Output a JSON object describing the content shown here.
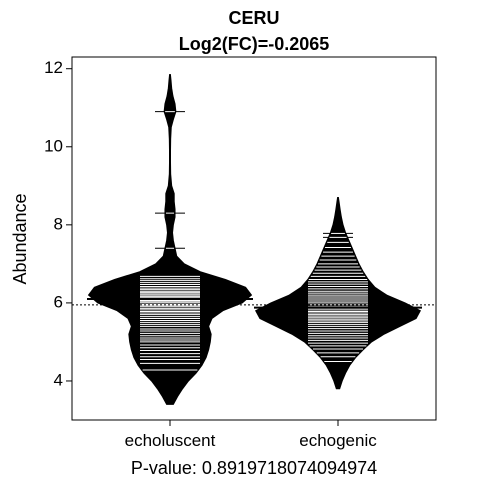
{
  "chart_data": {
    "type": "beanplot",
    "title": "CERU",
    "subtitle": "Log2(FC)=-0.2065",
    "xlabel": "P-value: 0.8919718074094974",
    "ylabel": "Abundance",
    "categories": [
      "echoluscent",
      "echogenic"
    ],
    "ylim": [
      3.0,
      12.3
    ],
    "yticks": [
      4,
      6,
      8,
      10,
      12
    ],
    "overall_mean": 5.95,
    "group_means": [
      6.1,
      5.88
    ],
    "grid": false,
    "beans": [
      {
        "name": "echoluscent",
        "min": 3.4,
        "max": 11.85,
        "density": [
          [
            3.4,
            0.04
          ],
          [
            3.6,
            0.09
          ],
          [
            3.8,
            0.15
          ],
          [
            4.0,
            0.22
          ],
          [
            4.2,
            0.31
          ],
          [
            4.4,
            0.38
          ],
          [
            4.6,
            0.43
          ],
          [
            4.8,
            0.46
          ],
          [
            5.0,
            0.48
          ],
          [
            5.2,
            0.49
          ],
          [
            5.4,
            0.46
          ],
          [
            5.6,
            0.5
          ],
          [
            5.8,
            0.63
          ],
          [
            6.0,
            0.86
          ],
          [
            6.2,
            0.97
          ],
          [
            6.4,
            0.9
          ],
          [
            6.6,
            0.66
          ],
          [
            6.8,
            0.36
          ],
          [
            7.0,
            0.17
          ],
          [
            7.2,
            0.08
          ],
          [
            7.4,
            0.06
          ],
          [
            7.6,
            0.04
          ],
          [
            7.8,
            0.03
          ],
          [
            8.0,
            0.04
          ],
          [
            8.2,
            0.06
          ],
          [
            8.4,
            0.06
          ],
          [
            8.6,
            0.05
          ],
          [
            8.8,
            0.05
          ],
          [
            9.0,
            0.02
          ],
          [
            9.3,
            0.008
          ],
          [
            9.6,
            0.006
          ],
          [
            9.9,
            0.006
          ],
          [
            10.2,
            0.008
          ],
          [
            10.5,
            0.015
          ],
          [
            10.7,
            0.04
          ],
          [
            10.9,
            0.07
          ],
          [
            11.1,
            0.06
          ],
          [
            11.3,
            0.035
          ],
          [
            11.5,
            0.02
          ],
          [
            11.7,
            0.012
          ],
          [
            11.85,
            0.005
          ]
        ],
        "points": [
          4.28,
          4.45,
          4.55,
          4.62,
          4.7,
          4.78,
          4.85,
          4.92,
          5.0,
          5.05,
          5.1,
          5.16,
          5.22,
          5.28,
          5.33,
          5.4,
          5.45,
          5.5,
          5.55,
          5.6,
          5.65,
          5.7,
          5.74,
          5.78,
          5.82,
          5.86,
          5.9,
          5.93,
          5.96,
          6.0,
          6.03,
          6.06,
          6.1,
          6.13,
          6.16,
          6.2,
          6.23,
          6.27,
          6.3,
          6.34,
          6.38,
          6.42,
          6.47,
          6.52,
          6.57,
          6.62,
          6.68,
          7.4,
          8.3,
          10.9
        ]
      },
      {
        "name": "echogenic",
        "min": 3.8,
        "max": 8.7,
        "density": [
          [
            3.8,
            0.02
          ],
          [
            4.0,
            0.05
          ],
          [
            4.2,
            0.09
          ],
          [
            4.4,
            0.14
          ],
          [
            4.6,
            0.21
          ],
          [
            4.8,
            0.3
          ],
          [
            5.0,
            0.4
          ],
          [
            5.2,
            0.55
          ],
          [
            5.4,
            0.74
          ],
          [
            5.6,
            0.93
          ],
          [
            5.8,
            0.98
          ],
          [
            6.0,
            0.8
          ],
          [
            6.2,
            0.58
          ],
          [
            6.4,
            0.44
          ],
          [
            6.6,
            0.36
          ],
          [
            6.8,
            0.3
          ],
          [
            7.0,
            0.25
          ],
          [
            7.2,
            0.21
          ],
          [
            7.4,
            0.17
          ],
          [
            7.6,
            0.13
          ],
          [
            7.8,
            0.09
          ],
          [
            8.0,
            0.06
          ],
          [
            8.2,
            0.04
          ],
          [
            8.4,
            0.025
          ],
          [
            8.6,
            0.012
          ],
          [
            8.7,
            0.005
          ]
        ],
        "points": [
          4.5,
          4.62,
          4.72,
          4.82,
          4.9,
          4.97,
          5.04,
          5.1,
          5.16,
          5.22,
          5.28,
          5.34,
          5.4,
          5.45,
          5.5,
          5.54,
          5.58,
          5.62,
          5.66,
          5.7,
          5.74,
          5.78,
          5.82,
          5.86,
          5.9,
          5.95,
          6.0,
          6.05,
          6.1,
          6.15,
          6.2,
          6.25,
          6.3,
          6.36,
          6.42,
          6.48,
          6.54,
          6.6,
          6.68,
          6.76,
          6.84,
          6.92,
          7.0,
          7.1,
          7.2,
          7.3,
          7.42,
          7.55,
          7.68,
          7.78
        ]
      }
    ]
  }
}
